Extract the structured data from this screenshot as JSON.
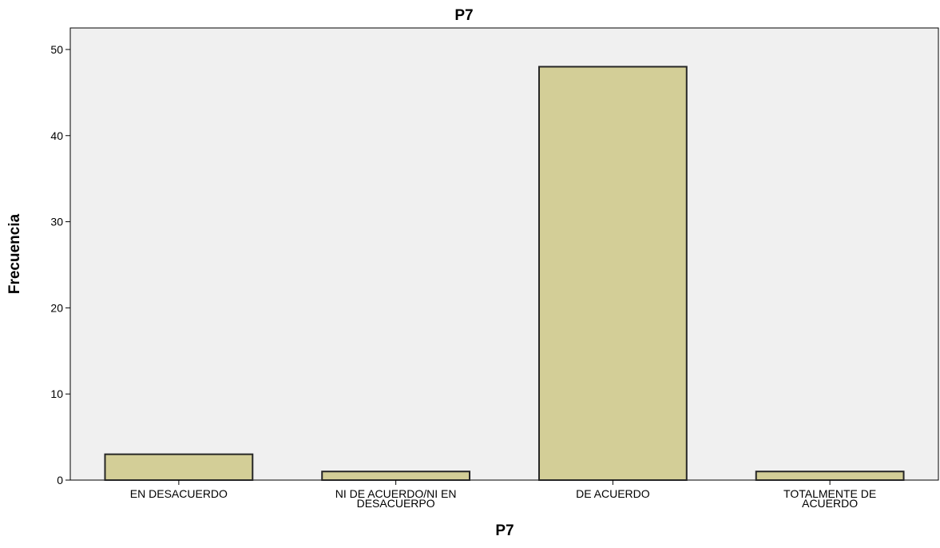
{
  "chart_data": {
    "type": "bar",
    "title": "P7",
    "xlabel": "P7",
    "ylabel": "Frecuencia",
    "categories": [
      [
        "EN DESACUERDO"
      ],
      [
        "NI DE ACUERDO/NI EN",
        "DESACUERPO"
      ],
      [
        "DE ACUERDO"
      ],
      [
        "TOTALMENTE DE",
        "ACUERDO"
      ]
    ],
    "values": [
      3,
      1,
      48,
      1
    ],
    "ylim": [
      0,
      52.5
    ],
    "yticks": [
      0,
      10,
      20,
      30,
      40,
      50
    ],
    "grid": false,
    "legend": "none",
    "colors": {
      "bar_fill": "#d3ce97",
      "bar_stroke": "#262626",
      "plot_background": "#f0f0f0",
      "frame": "#000000"
    }
  }
}
